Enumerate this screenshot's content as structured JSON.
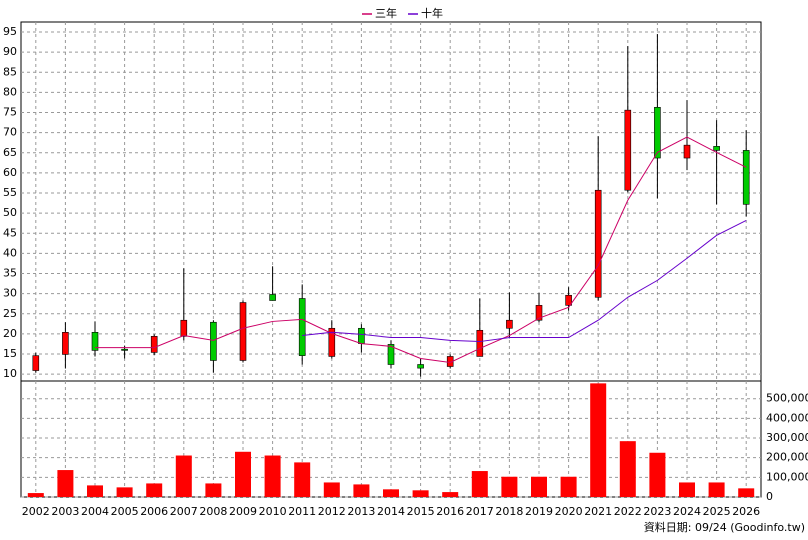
{
  "chart_data": [
    {
      "type": "candlestick",
      "categories": [
        "2002",
        "2003",
        "2004",
        "2005",
        "2006",
        "2007",
        "2008",
        "2009",
        "2010",
        "2011",
        "2012",
        "2013",
        "2014",
        "2015",
        "2016",
        "2017",
        "2018",
        "2019",
        "2020",
        "2021",
        "2022",
        "2023",
        "2024",
        "2025",
        "2026"
      ],
      "open": [
        10.9,
        14.9,
        20.4,
        16.2,
        15.4,
        19.4,
        22.9,
        13.4,
        29.8,
        28.8,
        14.4,
        21.4,
        17.4,
        12.4,
        11.9,
        14.4,
        21.4,
        23.4,
        27.1,
        29.1,
        55.7,
        76.3,
        63.7,
        66.6,
        65.6
      ],
      "high": [
        15.3,
        22.9,
        23.1,
        17.1,
        19.9,
        36.3,
        23.4,
        28.3,
        36.8,
        32.3,
        23.4,
        22.4,
        18.4,
        13.9,
        14.9,
        28.8,
        30.3,
        30.1,
        31.6,
        69.1,
        91.5,
        94.5,
        78.1,
        73.1,
        70.6
      ],
      "low": [
        10.4,
        11.4,
        14.4,
        13.9,
        14.7,
        18.4,
        10.4,
        12.9,
        28.3,
        12.4,
        13.9,
        15.4,
        11.4,
        9.4,
        11.4,
        14.4,
        18.9,
        22.9,
        25.8,
        28.3,
        55.2,
        53.7,
        60.7,
        52.2,
        49.2
      ],
      "close": [
        14.6,
        20.4,
        15.9,
        15.9,
        19.4,
        23.4,
        13.4,
        27.8,
        28.3,
        14.6,
        21.4,
        17.6,
        12.4,
        11.5,
        14.4,
        20.9,
        23.4,
        27.1,
        29.6,
        55.7,
        75.6,
        63.7,
        66.9,
        65.6,
        52.2
      ],
      "up_color": "#ff0000",
      "down_color": "#00cc00",
      "series": [
        {
          "name": "三年",
          "color": "#cc0066",
          "values": [
            null,
            null,
            16.6,
            16.6,
            16.6,
            19.6,
            18.4,
            21.4,
            23.1,
            23.6,
            20.1,
            17.6,
            16.9,
            13.9,
            12.9,
            16.4,
            19.6,
            23.9,
            26.6,
            37.0,
            53.2,
            65.1,
            68.9,
            65.1,
            61.4
          ]
        },
        {
          "name": "十年",
          "color": "#6600cc",
          "values": [
            null,
            null,
            null,
            null,
            null,
            null,
            null,
            null,
            null,
            19.6,
            20.4,
            19.9,
            19.1,
            19.1,
            18.4,
            18.1,
            19.1,
            19.1,
            19.1,
            23.4,
            29.1,
            33.3,
            38.8,
            44.5,
            48.2
          ]
        }
      ],
      "ylim": [
        8.3,
        97.5
      ],
      "yticks": [
        10,
        15,
        20,
        25,
        30,
        35,
        40,
        45,
        50,
        55,
        60,
        65,
        70,
        75,
        80,
        85,
        90,
        95
      ],
      "grid": true
    },
    {
      "type": "bar",
      "values": [
        20000,
        137000,
        59000,
        49000,
        69000,
        211000,
        69000,
        230000,
        211000,
        176000,
        74000,
        64000,
        39000,
        34000,
        25000,
        132000,
        103000,
        103000,
        103000,
        578000,
        284000,
        225000,
        74000,
        74000,
        44000
      ],
      "color": "#ff0000",
      "ylim": [
        0,
        590000
      ],
      "yticks": [
        0,
        {
          "value": 100000,
          "label": "100,000"
        },
        {
          "value": 200000,
          "label": "200,000"
        },
        {
          "value": 300000,
          "label": "300,000"
        },
        {
          "value": 400000,
          "label": "400,000"
        },
        {
          "value": 500000,
          "label": "500,000"
        }
      ],
      "grid": true,
      "note_text": "資料日期: 09/24  (Goodinfo.tw)"
    }
  ]
}
